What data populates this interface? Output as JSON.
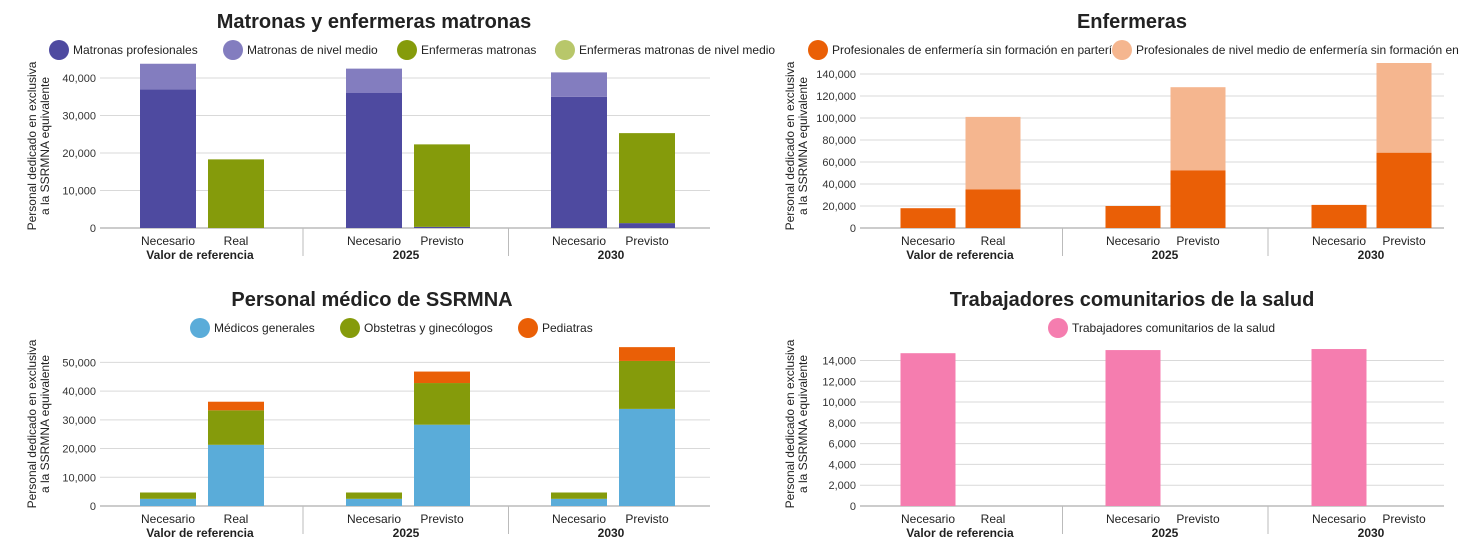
{
  "chart_data": [
    {
      "type": "bar",
      "title": "Matronas y enfermeras matronas",
      "ylabel": [
        "Personal dedicado en exclusiva",
        "a la SSRMNA equivalente"
      ],
      "ylim": [
        0,
        44000
      ],
      "yticks": [
        0,
        10000,
        20000,
        30000,
        40000
      ],
      "legend": "top",
      "groups": [
        {
          "label": "Valor de referencia",
          "bars": [
            "Necesario",
            "Real"
          ]
        },
        {
          "label": "2025",
          "bars": [
            "Necesario",
            "Previsto"
          ]
        },
        {
          "label": "2030",
          "bars": [
            "Necesario",
            "Previsto"
          ]
        }
      ],
      "series": [
        {
          "name": "Matronas profesionales",
          "color": "#4e4aa0",
          "values": [
            37000,
            0,
            36000,
            300,
            35000,
            1300
          ]
        },
        {
          "name": "Matronas de nivel medio",
          "color": "#837dbf",
          "values": [
            6800,
            0,
            6500,
            0,
            6500,
            0
          ]
        },
        {
          "name": "Enfermeras matronas",
          "color": "#859b0b",
          "values": [
            0,
            18300,
            0,
            22000,
            0,
            24000
          ]
        },
        {
          "name": "Enfermeras matronas de nivel medio",
          "color": "#b8c76a",
          "values": [
            0,
            0,
            0,
            0,
            0,
            0
          ]
        }
      ]
    },
    {
      "type": "bar",
      "title": "Enfermeras",
      "ylabel": [
        "Personal dedicado en exclusiva",
        "a la SSRMNA equivalente"
      ],
      "ylim": [
        0,
        150000
      ],
      "yticks": [
        0,
        20000,
        40000,
        60000,
        80000,
        100000,
        120000,
        140000
      ],
      "legend": "top",
      "groups": [
        {
          "label": "Valor de referencia",
          "bars": [
            "Necesario",
            "Real"
          ]
        },
        {
          "label": "2025",
          "bars": [
            "Necesario",
            "Previsto"
          ]
        },
        {
          "label": "2030",
          "bars": [
            "Necesario",
            "Previsto"
          ]
        }
      ],
      "series": [
        {
          "name": "Profesionales de enfermería sin formación en partería",
          "color": "#ea5f06",
          "values": [
            18000,
            35000,
            20000,
            52500,
            21000,
            68500
          ]
        },
        {
          "name": "Profesionales de nivel medio de enfermería sin formación en partería",
          "color": "#f5b68f",
          "values": [
            0,
            66000,
            0,
            75500,
            0,
            81500
          ]
        }
      ]
    },
    {
      "type": "bar",
      "title": "Personal médico de SSRMNA",
      "ylabel": [
        "Personal dedicado en exclusiva",
        "a la SSRMNA equivalente"
      ],
      "ylim": [
        0,
        55000
      ],
      "yticks": [
        0,
        10000,
        20000,
        30000,
        40000,
        50000
      ],
      "legend": "top",
      "groups": [
        {
          "label": "Valor de referencia",
          "bars": [
            "Necesario",
            "Real"
          ]
        },
        {
          "label": "2025",
          "bars": [
            "Necesario",
            "Previsto"
          ]
        },
        {
          "label": "2030",
          "bars": [
            "Necesario",
            "Previsto"
          ]
        }
      ],
      "series": [
        {
          "name": "Médicos generales",
          "color": "#5aacd9",
          "values": [
            2500,
            21300,
            2500,
            28300,
            2500,
            33800
          ]
        },
        {
          "name": "Obstetras y ginecólogos",
          "color": "#859b0b",
          "values": [
            2200,
            12000,
            2200,
            14500,
            2200,
            16700
          ]
        },
        {
          "name": "Pediatras",
          "color": "#ea5f06",
          "values": [
            0,
            3000,
            0,
            4000,
            0,
            4800
          ]
        }
      ]
    },
    {
      "type": "bar",
      "title": "Trabajadores comunitarios de la salud",
      "ylabel": [
        "Personal dedicado en exclusiva",
        "a la SSRMNA equivalente"
      ],
      "ylim": [
        0,
        15200
      ],
      "yticks": [
        0,
        2000,
        4000,
        6000,
        8000,
        10000,
        12000,
        14000
      ],
      "legend": "top",
      "groups": [
        {
          "label": "Valor de referencia",
          "bars": [
            "Necesario",
            "Real"
          ]
        },
        {
          "label": "2025",
          "bars": [
            "Necesario",
            "Previsto"
          ]
        },
        {
          "label": "2030",
          "bars": [
            "Necesario",
            "Previsto"
          ]
        }
      ],
      "series": [
        {
          "name": "Trabajadores comunitarios de la salud",
          "color": "#f57daf",
          "values": [
            14700,
            0,
            15000,
            0,
            15100,
            0
          ]
        }
      ]
    }
  ]
}
